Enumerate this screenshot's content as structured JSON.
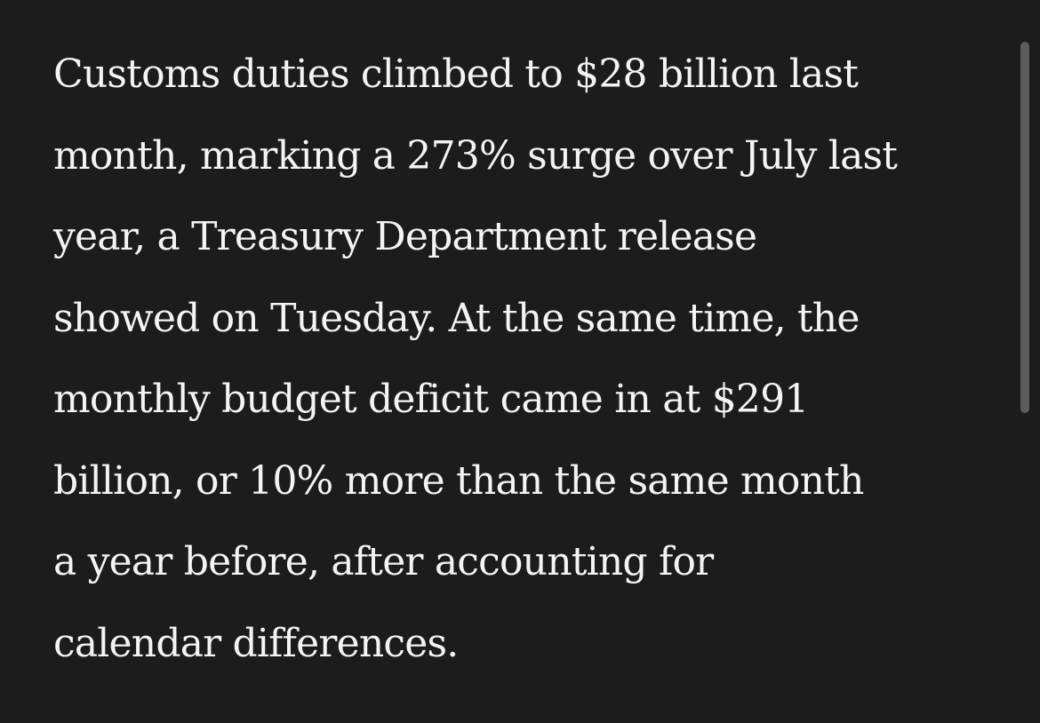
{
  "article": {
    "lines": [
      "Customs duties climbed to $28 billion last",
      "month, marking a 273% surge over July last",
      "year, a Treasury Department release",
      "showed on Tuesday. At the same time, the",
      "monthly budget deficit came in at $291",
      "billion, or 10% more than the same month",
      "a year before, after accounting for",
      "calendar differences."
    ]
  },
  "scrollbar": {
    "position_fraction": 0.06
  },
  "colors": {
    "background": "#1c1c1c",
    "text": "#f4f4f4",
    "scrollbar_thumb": "#5c5c5c"
  }
}
